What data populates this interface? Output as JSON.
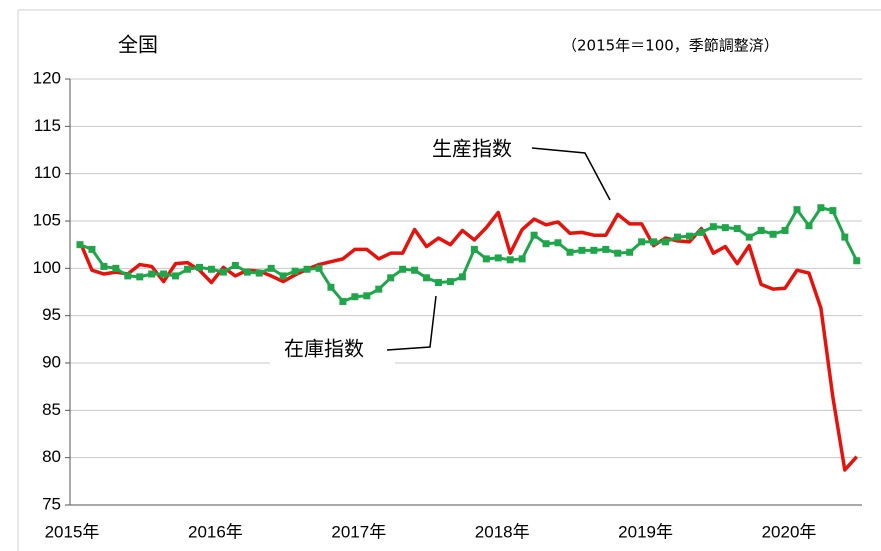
{
  "chart_data": {
    "type": "line",
    "title": "全国",
    "subtitle": "（2015年＝100，季節調整済）",
    "annotations": [
      "生産指数",
      "在庫指数"
    ],
    "categories": [
      "2015年",
      null,
      null,
      null,
      null,
      null,
      null,
      null,
      null,
      null,
      null,
      null,
      "2016年",
      null,
      null,
      null,
      null,
      null,
      null,
      null,
      null,
      null,
      null,
      null,
      "2017年",
      null,
      null,
      null,
      null,
      null,
      null,
      null,
      null,
      null,
      null,
      null,
      "2018年",
      null,
      null,
      null,
      null,
      null,
      null,
      null,
      null,
      null,
      null,
      null,
      "2019年",
      null,
      null,
      null,
      null,
      null,
      null,
      null,
      null,
      null,
      null,
      null,
      "2020年",
      null,
      null,
      null,
      null,
      null
    ],
    "series": [
      {
        "name": "生産指数",
        "color": "#e8120c",
        "values": [
          102.8,
          99.8,
          99.4,
          99.6,
          99.4,
          100.4,
          100.2,
          98.6,
          100.5,
          100.6,
          99.8,
          98.5,
          100.1,
          99.2,
          99.8,
          99.7,
          99.2,
          98.6,
          99.3,
          99.9,
          100.4,
          100.7,
          101.0,
          102.0,
          102.0,
          101.0,
          101.6,
          101.6,
          104.1,
          102.3,
          103.2,
          102.5,
          104.0,
          103.0,
          104.3,
          105.9,
          101.6,
          104.1,
          105.2,
          104.6,
          104.9,
          103.7,
          103.8,
          103.5,
          103.5,
          105.7,
          104.7,
          104.7,
          102.4,
          103.2,
          102.9,
          102.8,
          104.2,
          101.6,
          102.3,
          100.5,
          102.4,
          98.3,
          97.8,
          97.9,
          99.8,
          99.5,
          95.8,
          86.4,
          78.7,
          80.1
        ]
      },
      {
        "name": "在庫指数",
        "color": "#1fa64a",
        "values": [
          102.5,
          102.0,
          100.2,
          100.0,
          99.2,
          99.1,
          99.4,
          99.4,
          99.2,
          99.9,
          100.1,
          99.9,
          99.6,
          100.3,
          99.6,
          99.5,
          100.0,
          99.2,
          99.7,
          99.9,
          100.0,
          98.0,
          96.5,
          97.0,
          97.1,
          97.8,
          99.0,
          99.9,
          99.8,
          99.0,
          98.5,
          98.6,
          99.1,
          102.0,
          101.0,
          101.1,
          100.9,
          101.0,
          103.5,
          102.6,
          102.7,
          101.7,
          101.9,
          101.9,
          102.0,
          101.6,
          101.7,
          102.8,
          102.8,
          102.8,
          103.3,
          103.4,
          103.8,
          104.4,
          104.3,
          104.2,
          103.3,
          104.0,
          103.6,
          104.0,
          106.2,
          104.5,
          106.4,
          106.1,
          103.3,
          100.8
        ]
      }
    ],
    "ylim": [
      75,
      120
    ],
    "yticks": [
      75,
      80,
      85,
      90,
      95,
      100,
      105,
      110,
      115,
      120
    ],
    "grid": true
  }
}
